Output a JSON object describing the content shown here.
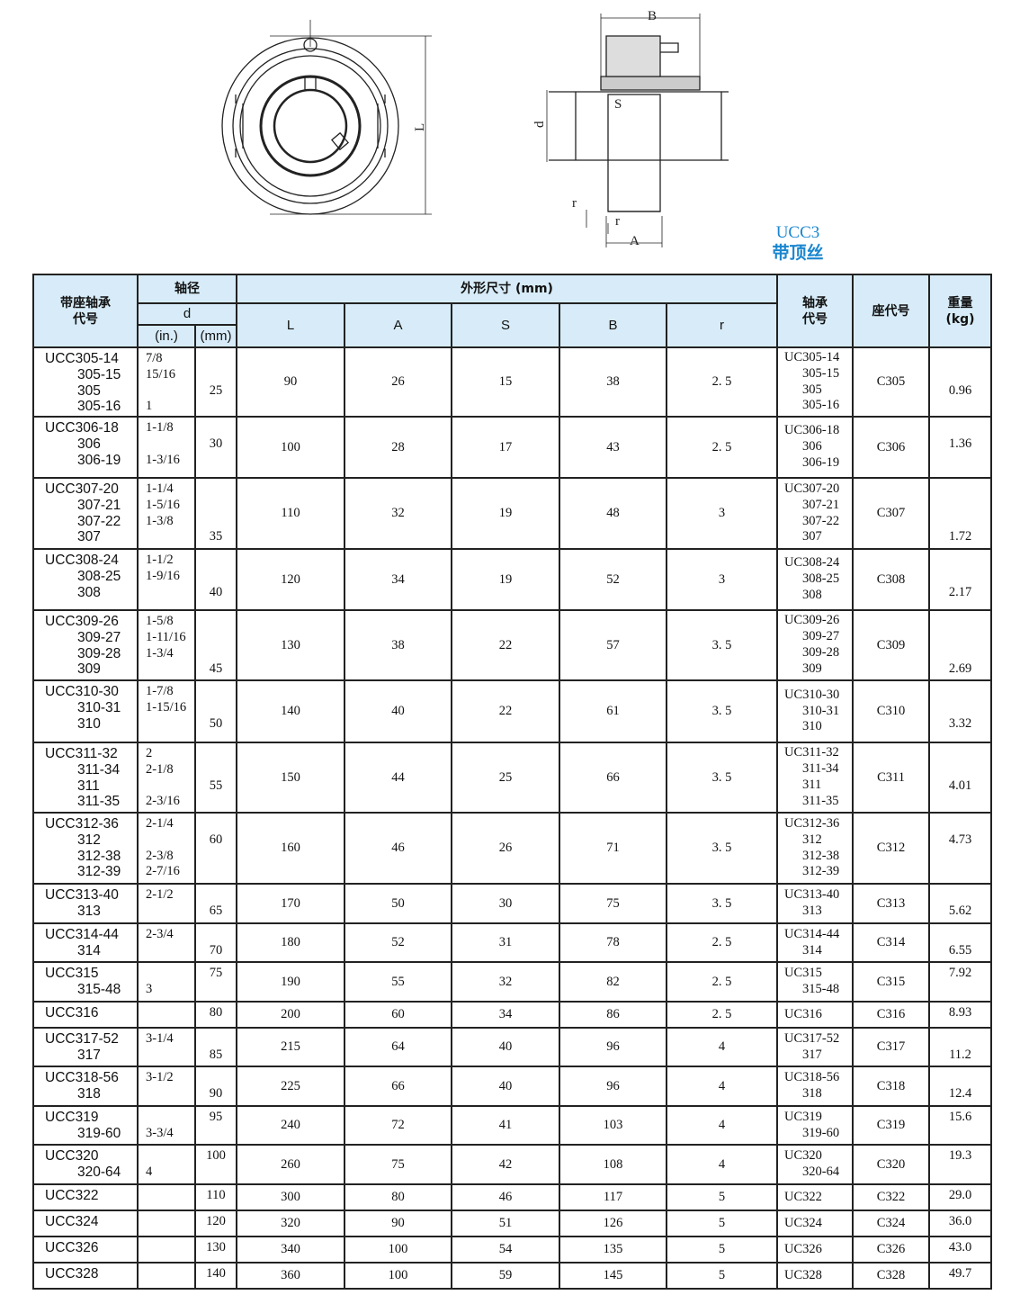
{
  "drawing": {
    "labels": {
      "B": "B",
      "L": "L",
      "d": "d",
      "S": "S",
      "r1": "r",
      "r2": "r",
      "A": "A"
    }
  },
  "title": {
    "model": "UCC3",
    "subtitle": "带顶丝"
  },
  "header": {
    "unit_code": "带座轴承\n代号",
    "shaft": "轴径",
    "d": "d",
    "in": "(in.)",
    "mm": "(mm)",
    "dims": "外形尺寸 (mm)",
    "L": "L",
    "A": "A",
    "S": "S",
    "B": "B",
    "r": "r",
    "bearing": "轴承\n代号",
    "housing": "座代号",
    "weight": "重量\n(kg)"
  },
  "rows": [
    {
      "code": [
        "UCC305-14",
        "305-15",
        "305",
        "305-16"
      ],
      "inch": [
        "7/8",
        "15/16",
        "",
        "1"
      ],
      "mm": [
        "",
        "",
        "25",
        ""
      ],
      "L": "90",
      "A": "26",
      "S": "15",
      "B": "38",
      "r": "2. 5",
      "bearing": [
        "UC305-14",
        "305-15",
        "305",
        "305-16"
      ],
      "housing": "C305",
      "weight": [
        "",
        "",
        "0.96",
        ""
      ]
    },
    {
      "code": [
        "UCC306-18",
        "306",
        "306-19"
      ],
      "inch": [
        "1-1/8",
        "",
        "1-3/16"
      ],
      "mm": [
        "",
        "30",
        ""
      ],
      "L": "100",
      "A": "28",
      "S": "17",
      "B": "43",
      "r": "2. 5",
      "bearing": [
        "UC306-18",
        "306",
        "306-19"
      ],
      "housing": "C306",
      "weight": [
        "",
        "1.36",
        ""
      ]
    },
    {
      "code": [
        "UCC307-20",
        "307-21",
        "307-22",
        "307"
      ],
      "inch": [
        "1-1/4",
        "1-5/16",
        "1-3/8",
        ""
      ],
      "mm": [
        "",
        "",
        "",
        "35"
      ],
      "L": "110",
      "A": "32",
      "S": "19",
      "B": "48",
      "r": "3",
      "bearing": [
        "UC307-20",
        "307-21",
        "307-22",
        "307"
      ],
      "housing": "C307",
      "weight": [
        "",
        "",
        "",
        "1.72"
      ]
    },
    {
      "code": [
        "UCC308-24",
        "308-25",
        "308"
      ],
      "inch": [
        "1-1/2",
        "1-9/16",
        ""
      ],
      "mm": [
        "",
        "",
        "40"
      ],
      "L": "120",
      "A": "34",
      "S": "19",
      "B": "52",
      "r": "3",
      "bearing": [
        "UC308-24",
        "308-25",
        "308"
      ],
      "housing": "C308",
      "weight": [
        "",
        "",
        "2.17"
      ]
    },
    {
      "code": [
        "UCC309-26",
        "309-27",
        "309-28",
        "309"
      ],
      "inch": [
        "1-5/8",
        "1-11/16",
        "1-3/4",
        ""
      ],
      "mm": [
        "",
        "",
        "",
        "45"
      ],
      "L": "130",
      "A": "38",
      "S": "22",
      "B": "57",
      "r": "3. 5",
      "bearing": [
        "UC309-26",
        "309-27",
        "309-28",
        "309"
      ],
      "housing": "C309",
      "weight": [
        "",
        "",
        "",
        "2.69"
      ]
    },
    {
      "code": [
        "UCC310-30",
        "310-31",
        "310"
      ],
      "inch": [
        "1-7/8",
        "1-15/16",
        ""
      ],
      "mm": [
        "",
        "",
        "50"
      ],
      "L": "140",
      "A": "40",
      "S": "22",
      "B": "61",
      "r": "3. 5",
      "bearing": [
        "UC310-30",
        "310-31",
        "310"
      ],
      "housing": "C310",
      "weight": [
        "",
        "",
        "3.32"
      ]
    },
    {
      "code": [
        "UCC311-32",
        "311-34",
        "311",
        "311-35"
      ],
      "inch": [
        "2",
        "2-1/8",
        "",
        "2-3/16"
      ],
      "mm": [
        "",
        "",
        "55",
        ""
      ],
      "L": "150",
      "A": "44",
      "S": "25",
      "B": "66",
      "r": "3. 5",
      "bearing": [
        "UC311-32",
        "311-34",
        "311",
        "311-35"
      ],
      "housing": "C311",
      "weight": [
        "",
        "",
        "4.01",
        ""
      ]
    },
    {
      "code": [
        "UCC312-36",
        "312",
        "312-38",
        "312-39"
      ],
      "inch": [
        "2-1/4",
        "",
        "2-3/8",
        "2-7/16"
      ],
      "mm": [
        "",
        "60",
        "",
        ""
      ],
      "L": "160",
      "A": "46",
      "S": "26",
      "B": "71",
      "r": "3. 5",
      "bearing": [
        "UC312-36",
        "312",
        "312-38",
        "312-39"
      ],
      "housing": "C312",
      "weight": [
        "",
        "4.73",
        "",
        ""
      ]
    },
    {
      "code": [
        "UCC313-40",
        "313"
      ],
      "inch": [
        "2-1/2",
        ""
      ],
      "mm": [
        "",
        "65"
      ],
      "L": "170",
      "A": "50",
      "S": "30",
      "B": "75",
      "r": "3. 5",
      "bearing": [
        "UC313-40",
        "313"
      ],
      "housing": "C313",
      "weight": [
        "",
        "5.62"
      ]
    },
    {
      "code": [
        "UCC314-44",
        "314"
      ],
      "inch": [
        "2-3/4",
        ""
      ],
      "mm": [
        "",
        "70"
      ],
      "L": "180",
      "A": "52",
      "S": "31",
      "B": "78",
      "r": "2. 5",
      "bearing": [
        "UC314-44",
        "314"
      ],
      "housing": "C314",
      "weight": [
        "",
        "6.55"
      ]
    },
    {
      "code": [
        "UCC315",
        "315-48"
      ],
      "inch": [
        "",
        "3"
      ],
      "mm": [
        "75",
        ""
      ],
      "L": "190",
      "A": "55",
      "S": "32",
      "B": "82",
      "r": "2. 5",
      "bearing": [
        "UC315",
        "315-48"
      ],
      "housing": "C315",
      "weight": [
        "7.92",
        ""
      ]
    },
    {
      "code": [
        "UCC316"
      ],
      "inch": [
        ""
      ],
      "mm": [
        "80"
      ],
      "L": "200",
      "A": "60",
      "S": "34",
      "B": "86",
      "r": "2. 5",
      "bearing": [
        "UC316"
      ],
      "housing": "C316",
      "weight": [
        "8.93"
      ]
    },
    {
      "code": [
        "UCC317-52",
        "317"
      ],
      "inch": [
        "3-1/4",
        ""
      ],
      "mm": [
        "",
        "85"
      ],
      "L": "215",
      "A": "64",
      "S": "40",
      "B": "96",
      "r": "4",
      "bearing": [
        "UC317-52",
        "317"
      ],
      "housing": "C317",
      "weight": [
        "",
        "11.2"
      ]
    },
    {
      "code": [
        "UCC318-56",
        "318"
      ],
      "inch": [
        "3-1/2",
        ""
      ],
      "mm": [
        "",
        "90"
      ],
      "L": "225",
      "A": "66",
      "S": "40",
      "B": "96",
      "r": "4",
      "bearing": [
        "UC318-56",
        "318"
      ],
      "housing": "C318",
      "weight": [
        "",
        "12.4"
      ]
    },
    {
      "code": [
        "UCC319",
        "319-60"
      ],
      "inch": [
        "",
        "3-3/4"
      ],
      "mm": [
        "95",
        ""
      ],
      "L": "240",
      "A": "72",
      "S": "41",
      "B": "103",
      "r": "4",
      "bearing": [
        "UC319",
        "319-60"
      ],
      "housing": "C319",
      "weight": [
        "15.6",
        ""
      ]
    },
    {
      "code": [
        "UCC320",
        "320-64"
      ],
      "inch": [
        "",
        "4"
      ],
      "mm": [
        "100",
        ""
      ],
      "L": "260",
      "A": "75",
      "S": "42",
      "B": "108",
      "r": "4",
      "bearing": [
        "UC320",
        "320-64"
      ],
      "housing": "C320",
      "weight": [
        "19.3",
        ""
      ]
    },
    {
      "code": [
        "UCC322"
      ],
      "inch": [
        ""
      ],
      "mm": [
        "110"
      ],
      "L": "300",
      "A": "80",
      "S": "46",
      "B": "117",
      "r": "5",
      "bearing": [
        "UC322"
      ],
      "housing": "C322",
      "weight": [
        "29.0"
      ]
    },
    {
      "code": [
        "UCC324"
      ],
      "inch": [
        ""
      ],
      "mm": [
        "120"
      ],
      "L": "320",
      "A": "90",
      "S": "51",
      "B": "126",
      "r": "5",
      "bearing": [
        "UC324"
      ],
      "housing": "C324",
      "weight": [
        "36.0"
      ]
    },
    {
      "code": [
        "UCC326"
      ],
      "inch": [
        ""
      ],
      "mm": [
        "130"
      ],
      "L": "340",
      "A": "100",
      "S": "54",
      "B": "135",
      "r": "5",
      "bearing": [
        "UC326"
      ],
      "housing": "C326",
      "weight": [
        "43.0"
      ]
    },
    {
      "code": [
        "UCC328"
      ],
      "inch": [
        ""
      ],
      "mm": [
        "140"
      ],
      "L": "360",
      "A": "100",
      "S": "59",
      "B": "145",
      "r": "5",
      "bearing": [
        "UC328"
      ],
      "housing": "C328",
      "weight": [
        "49.7"
      ]
    }
  ]
}
